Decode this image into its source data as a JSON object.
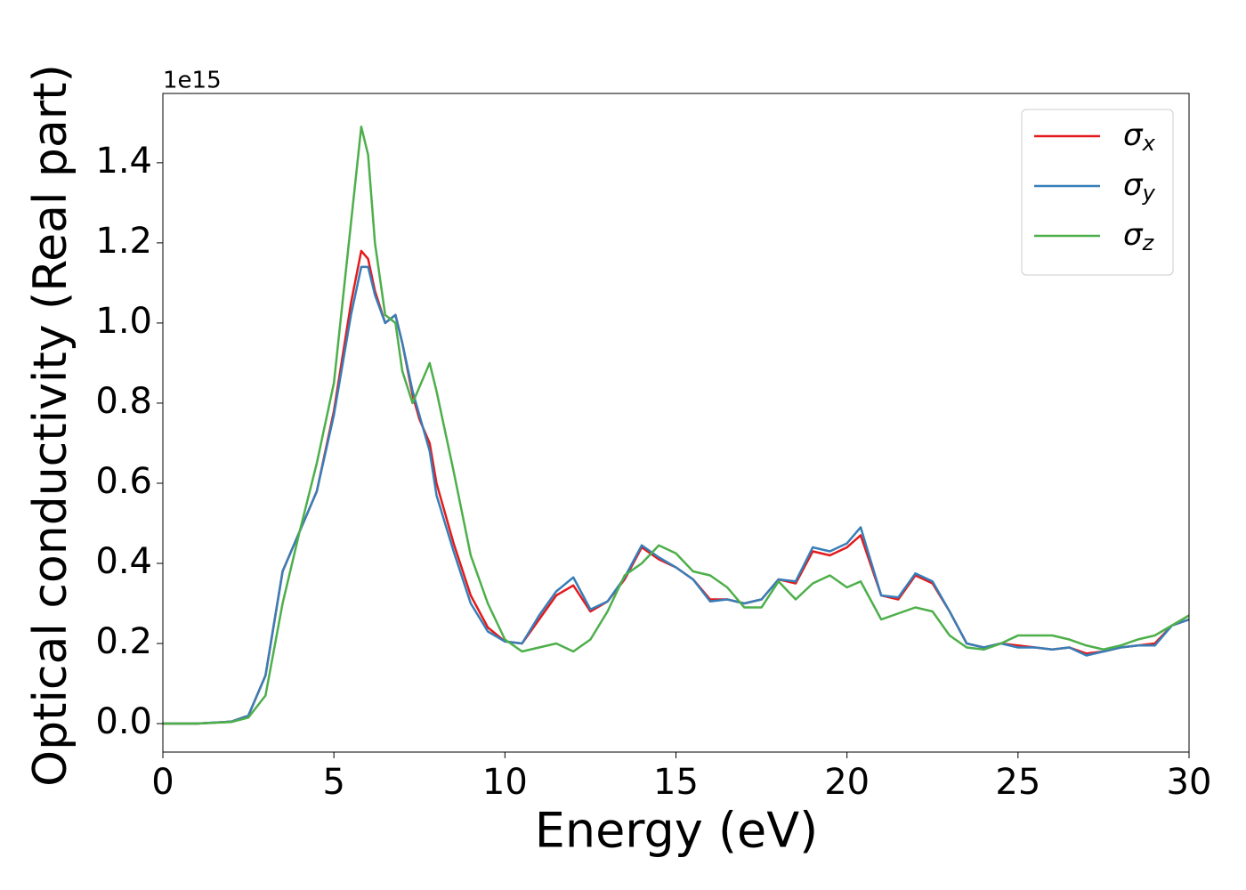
{
  "chart_data": {
    "type": "line",
    "xlabel": "Energy (eV)",
    "ylabel": "Optical conductivity (Real part)",
    "y_offset_label": "1e15",
    "x": [
      0,
      1,
      2,
      2.5,
      3,
      3.5,
      4,
      4.5,
      5,
      5.5,
      5.8,
      6,
      6.2,
      6.5,
      6.8,
      7,
      7.3,
      7.5,
      7.8,
      8,
      8.5,
      9,
      9.5,
      10,
      10.5,
      11,
      11.5,
      12,
      12.5,
      13,
      13.5,
      14,
      14.5,
      15,
      15.5,
      16,
      16.5,
      17,
      17.5,
      18,
      18.5,
      19,
      19.5,
      20,
      20.4,
      21,
      21.5,
      22,
      22.5,
      23,
      23.5,
      24,
      24.5,
      25,
      25.5,
      26,
      26.5,
      27,
      27.5,
      28,
      28.5,
      29,
      29.5,
      30
    ],
    "series": [
      {
        "name": "σx",
        "color": "#e41a1c",
        "values": [
          0,
          0,
          0.005,
          0.02,
          0.12,
          0.38,
          0.48,
          0.58,
          0.78,
          1.05,
          1.18,
          1.16,
          1.08,
          1.0,
          1.02,
          0.95,
          0.82,
          0.76,
          0.7,
          0.6,
          0.45,
          0.32,
          0.24,
          0.205,
          0.2,
          0.26,
          0.32,
          0.345,
          0.28,
          0.305,
          0.36,
          0.44,
          0.41,
          0.39,
          0.36,
          0.31,
          0.31,
          0.3,
          0.31,
          0.36,
          0.35,
          0.43,
          0.42,
          0.44,
          0.47,
          0.32,
          0.31,
          0.37,
          0.35,
          0.28,
          0.2,
          0.19,
          0.2,
          0.195,
          0.19,
          0.185,
          0.19,
          0.175,
          0.18,
          0.19,
          0.195,
          0.2,
          0.245,
          0.26
        ]
      },
      {
        "name": "σy",
        "color": "#377eb8",
        "values": [
          0,
          0,
          0.005,
          0.02,
          0.12,
          0.38,
          0.48,
          0.58,
          0.77,
          1.02,
          1.14,
          1.14,
          1.07,
          1.0,
          1.02,
          0.95,
          0.83,
          0.77,
          0.68,
          0.57,
          0.43,
          0.3,
          0.23,
          0.205,
          0.2,
          0.27,
          0.33,
          0.365,
          0.285,
          0.305,
          0.365,
          0.445,
          0.415,
          0.39,
          0.36,
          0.305,
          0.31,
          0.3,
          0.31,
          0.36,
          0.355,
          0.44,
          0.43,
          0.45,
          0.49,
          0.32,
          0.315,
          0.375,
          0.355,
          0.28,
          0.2,
          0.19,
          0.2,
          0.19,
          0.19,
          0.185,
          0.19,
          0.17,
          0.18,
          0.19,
          0.195,
          0.195,
          0.245,
          0.26
        ]
      },
      {
        "name": "σz",
        "color": "#4daf4a",
        "values": [
          0,
          0,
          0.004,
          0.015,
          0.07,
          0.3,
          0.48,
          0.65,
          0.85,
          1.25,
          1.49,
          1.42,
          1.2,
          1.02,
          1.0,
          0.88,
          0.8,
          0.84,
          0.9,
          0.83,
          0.63,
          0.42,
          0.3,
          0.21,
          0.18,
          0.19,
          0.2,
          0.18,
          0.21,
          0.28,
          0.37,
          0.4,
          0.445,
          0.425,
          0.38,
          0.37,
          0.34,
          0.29,
          0.29,
          0.355,
          0.31,
          0.35,
          0.37,
          0.34,
          0.355,
          0.26,
          0.275,
          0.29,
          0.28,
          0.22,
          0.19,
          0.185,
          0.2,
          0.22,
          0.22,
          0.22,
          0.21,
          0.195,
          0.185,
          0.195,
          0.21,
          0.22,
          0.245,
          0.27
        ]
      }
    ],
    "xlim": [
      0,
      30
    ],
    "xticks": [
      0,
      5,
      10,
      15,
      20,
      25,
      30
    ],
    "ylim": [
      -0.071,
      1.573
    ],
    "yticks": [
      {
        "value": 0,
        "label": "0.0"
      },
      0.2,
      0.4,
      0.6,
      0.8,
      {
        "value": 1,
        "label": "1.0"
      },
      1.2,
      1.4
    ],
    "legend": "upper right",
    "grid": false
  }
}
